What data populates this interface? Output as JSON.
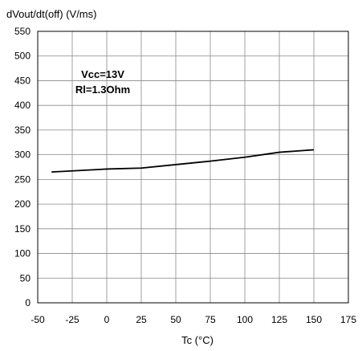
{
  "chart_data": {
    "type": "line",
    "title": "",
    "ylabel": "dVout/dt(off)  (V/ms)",
    "xlabel": "Tc (°C)",
    "xlim": [
      -50,
      175
    ],
    "ylim": [
      0,
      550
    ],
    "xticks": [
      -50,
      -25,
      0,
      25,
      50,
      75,
      100,
      125,
      150,
      175
    ],
    "yticks": [
      0,
      50,
      100,
      150,
      200,
      250,
      300,
      350,
      400,
      450,
      500,
      550
    ],
    "grid": true,
    "annotations": [
      "Vcc=13V",
      "Rl=1.3Ohm"
    ],
    "series": [
      {
        "x": [
          -40,
          0,
          25,
          50,
          75,
          100,
          125,
          150
        ],
        "y": [
          265,
          271,
          273,
          280,
          287,
          295,
          305,
          310
        ]
      }
    ]
  }
}
